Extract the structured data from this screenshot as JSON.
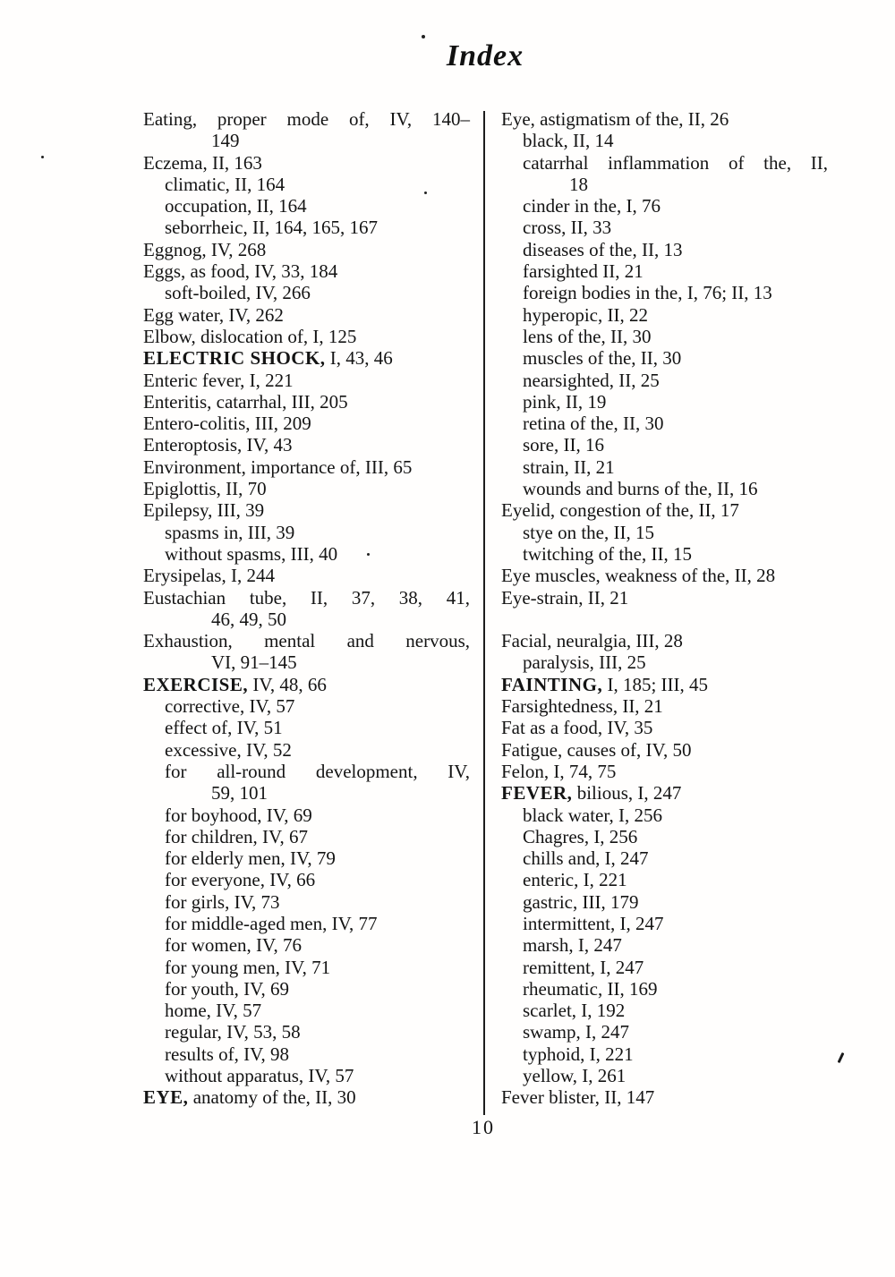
{
  "document": {
    "title": "Index",
    "page_number": "10"
  },
  "columns": {
    "left": [
      {
        "t": "Eating, proper mode of, IV, 140–",
        "j": true
      },
      {
        "t": "149",
        "i": 2
      },
      {
        "t": "Eczema, II, 163"
      },
      {
        "t": "climatic, II, 164",
        "i": 1
      },
      {
        "t": "occupation, II, 164",
        "i": 1
      },
      {
        "t": "seborrheic, II, 164, 165, 167",
        "i": 1
      },
      {
        "t": "Eggnog, IV, 268"
      },
      {
        "t": "Eggs, as food, IV, 33, 184"
      },
      {
        "t": "soft-boiled, IV, 266",
        "i": 1
      },
      {
        "t": "Egg water, IV, 262"
      },
      {
        "t": "Elbow, dislocation of, I, 125"
      },
      {
        "b": "ELECTRIC SHOCK,",
        "t": " I, 43, 46"
      },
      {
        "t": "Enteric fever, I, 221"
      },
      {
        "t": "Enteritis, catarrhal, III, 205"
      },
      {
        "t": "Entero-colitis, III, 209"
      },
      {
        "t": "Enteroptosis, IV, 43"
      },
      {
        "t": "Environment, importance of, III, 65"
      },
      {
        "t": "Epiglottis, II, 70"
      },
      {
        "t": "Epilepsy, III, 39"
      },
      {
        "t": "spasms in, III, 39",
        "i": 1
      },
      {
        "t": "without spasms, III, 40",
        "i": 1
      },
      {
        "t": "Erysipelas, I, 244"
      },
      {
        "t": "Eustachian tube, II, 37, 38, 41,",
        "j": true
      },
      {
        "t": "46, 49, 50",
        "i": 2
      },
      {
        "t": "Exhaustion, mental and nervous,",
        "j": true
      },
      {
        "t": "VI, 91–145",
        "i": 2
      },
      {
        "b": "EXERCISE,",
        "t": " IV, 48, 66"
      },
      {
        "t": "corrective, IV, 57",
        "i": 1
      },
      {
        "t": "effect of, IV, 51",
        "i": 1
      },
      {
        "t": "excessive, IV, 52",
        "i": 1
      },
      {
        "t": "for all-round development, IV,",
        "i": 1,
        "j": true
      },
      {
        "t": "59, 101",
        "i": 2
      },
      {
        "t": "for boyhood, IV, 69",
        "i": 1
      },
      {
        "t": "for children, IV, 67",
        "i": 1
      },
      {
        "t": "for elderly men, IV, 79",
        "i": 1
      },
      {
        "t": "for everyone, IV, 66",
        "i": 1
      },
      {
        "t": "for girls, IV, 73",
        "i": 1
      },
      {
        "t": "for middle-aged men, IV, 77",
        "i": 1
      },
      {
        "t": "for women, IV, 76",
        "i": 1
      },
      {
        "t": "for young men, IV, 71",
        "i": 1
      },
      {
        "t": "for youth, IV, 69",
        "i": 1
      },
      {
        "t": "home, IV, 57",
        "i": 1
      },
      {
        "t": "regular, IV, 53, 58",
        "i": 1
      },
      {
        "t": "results of, IV, 98",
        "i": 1
      },
      {
        "t": "without apparatus, IV, 57",
        "i": 1
      },
      {
        "b": "EYE,",
        "t": " anatomy of the, II, 30"
      }
    ],
    "right": [
      {
        "t": "Eye, astigmatism of the, II, 26"
      },
      {
        "t": "black, II, 14",
        "i": 1
      },
      {
        "t": "catarrhal inflammation of the, II,",
        "i": 1,
        "j": true
      },
      {
        "t": "18",
        "i": 2
      },
      {
        "t": "cinder in the, I, 76",
        "i": 1
      },
      {
        "t": "cross, II, 33",
        "i": 1
      },
      {
        "t": "diseases of the, II, 13",
        "i": 1
      },
      {
        "t": "farsighted II, 21",
        "i": 1
      },
      {
        "t": "foreign bodies in the, I, 76; II, 13",
        "i": 1
      },
      {
        "t": "hyperopic, II, 22",
        "i": 1
      },
      {
        "t": "lens of the, II, 30",
        "i": 1
      },
      {
        "t": "muscles of the, II, 30",
        "i": 1
      },
      {
        "t": "nearsighted, II, 25",
        "i": 1
      },
      {
        "t": "pink, II, 19",
        "i": 1
      },
      {
        "t": "retina of the, II, 30",
        "i": 1
      },
      {
        "t": "sore, II, 16",
        "i": 1
      },
      {
        "t": "strain, II, 21",
        "i": 1
      },
      {
        "t": "wounds and burns of the, II, 16",
        "i": 1
      },
      {
        "t": "Eyelid, congestion of the, II, 17"
      },
      {
        "t": "stye on the, II, 15",
        "i": 1
      },
      {
        "t": "twitching of the, II, 15",
        "i": 1
      },
      {
        "t": "Eye muscles, weakness of the, II, 28"
      },
      {
        "t": "Eye-strain, II, 21"
      },
      {
        "t": "",
        "blank": true
      },
      {
        "t": "Facial, neuralgia, III, 28"
      },
      {
        "t": "paralysis, III, 25",
        "i": 1
      },
      {
        "b": "FAINTING,",
        "t": " I, 185; III, 45"
      },
      {
        "t": "Farsightedness, II, 21"
      },
      {
        "t": "Fat as a food, IV, 35"
      },
      {
        "t": "Fatigue, causes of, IV, 50"
      },
      {
        "t": "Felon, I, 74, 75"
      },
      {
        "b": "FEVER,",
        "t": " bilious, I, 247"
      },
      {
        "t": "black water, I, 256",
        "i": 1
      },
      {
        "t": "Chagres, I, 256",
        "i": 1
      },
      {
        "t": "chills and, I, 247",
        "i": 1
      },
      {
        "t": "enteric, I, 221",
        "i": 1
      },
      {
        "t": "gastric, III, 179",
        "i": 1
      },
      {
        "t": "intermittent, I, 247",
        "i": 1
      },
      {
        "t": "marsh, I, 247",
        "i": 1
      },
      {
        "t": "remittent, I, 247",
        "i": 1
      },
      {
        "t": "rheumatic, II, 169",
        "i": 1
      },
      {
        "t": "scarlet, I, 192",
        "i": 1
      },
      {
        "t": "swamp, I, 247",
        "i": 1
      },
      {
        "t": "typhoid, I, 221",
        "i": 1
      },
      {
        "t": "yellow, I, 261",
        "i": 1
      },
      {
        "t": "Fever blister, II, 147"
      }
    ]
  }
}
